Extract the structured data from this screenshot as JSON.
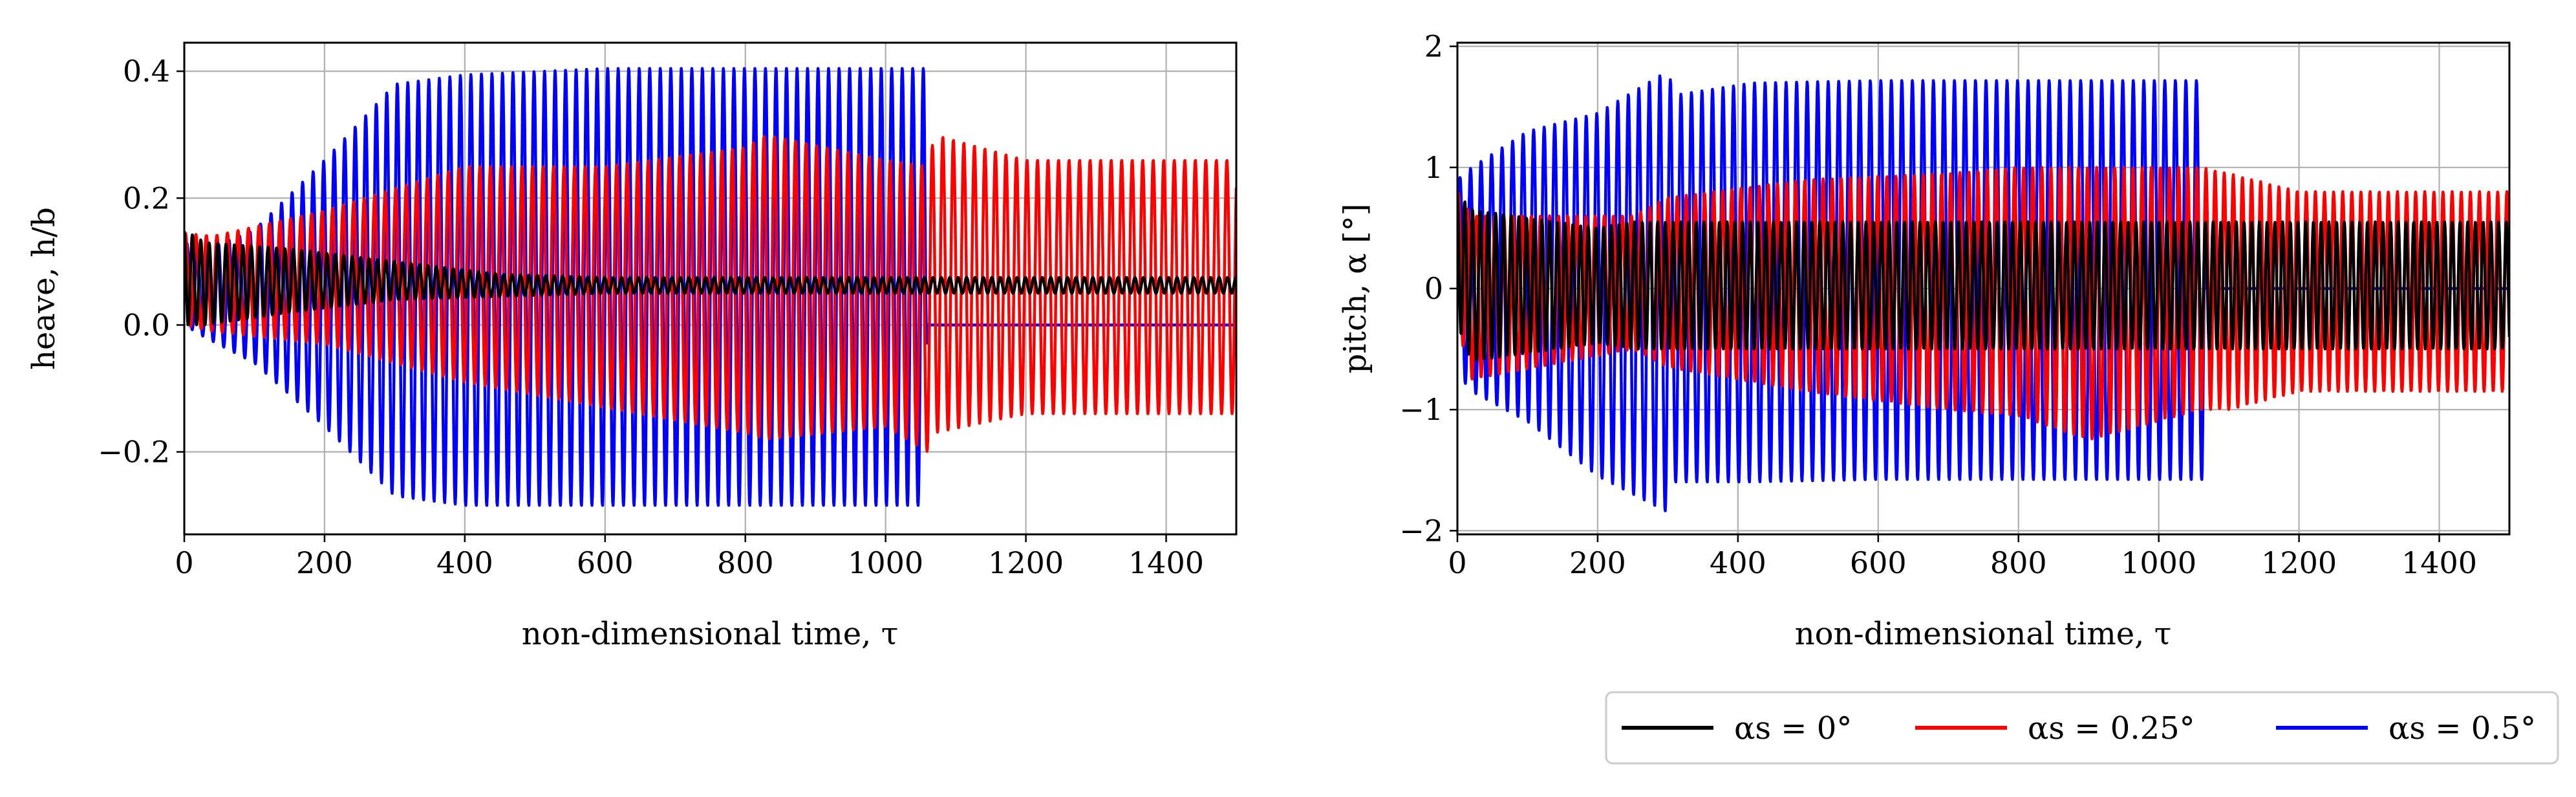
{
  "chart_data": [
    {
      "type": "line",
      "xlabel": "non-dimensional time, τ",
      "ylabel": "heave, h/b",
      "xlim": [
        0,
        1500
      ],
      "ylim": [
        -0.33,
        0.445
      ],
      "xticks": [
        0,
        200,
        400,
        600,
        800,
        1000,
        1200,
        1400
      ],
      "xtick_labels": [
        "0",
        "200",
        "400",
        "600",
        "800",
        "1000",
        "1200",
        "1400"
      ],
      "yticks": [
        -0.2,
        0.0,
        0.2,
        0.4
      ],
      "ytick_labels": [
        "−0.2",
        "0.0",
        "0.2",
        "0.4"
      ],
      "grid": true,
      "series": [
        {
          "name": "α_s = 0.5°",
          "color": "#0000ff",
          "period": 15,
          "envelope_x": [
            0,
            30,
            100,
            200,
            300,
            400,
            600,
            800,
            1000,
            1055,
            1060,
            1500
          ],
          "envelope_upper": [
            0.13,
            0.12,
            0.15,
            0.26,
            0.38,
            0.395,
            0.405,
            0.405,
            0.405,
            0.405,
            0.0,
            0.0
          ],
          "envelope_lower": [
            0.0,
            -0.02,
            -0.06,
            -0.16,
            -0.27,
            -0.285,
            -0.285,
            -0.285,
            -0.285,
            -0.285,
            0.0,
            0.0
          ]
        },
        {
          "name": "α_s = 0.25°",
          "color": "#ff0000",
          "period": 15,
          "envelope_x": [
            0,
            40,
            200,
            400,
            600,
            800,
            830,
            1000,
            1060,
            1070,
            1200,
            1500
          ],
          "envelope_upper": [
            0.145,
            0.14,
            0.18,
            0.25,
            0.25,
            0.28,
            0.3,
            0.26,
            0.25,
            0.3,
            0.26,
            0.26
          ],
          "envelope_lower": [
            0.0,
            -0.01,
            -0.03,
            -0.09,
            -0.13,
            -0.17,
            -0.18,
            -0.16,
            -0.2,
            -0.17,
            -0.14,
            -0.14
          ]
        },
        {
          "name": "α_s = 0°",
          "color": "#000000",
          "period": 12,
          "envelope_x": [
            0,
            30,
            150,
            300,
            450,
            600,
            1500
          ],
          "envelope_upper": [
            0.15,
            0.13,
            0.12,
            0.1,
            0.08,
            0.075,
            0.075
          ],
          "envelope_lower": [
            0.0,
            0.0,
            0.02,
            0.04,
            0.045,
            0.05,
            0.05
          ]
        }
      ]
    },
    {
      "type": "line",
      "xlabel": "non-dimensional time, τ",
      "ylabel": "pitch, α [°]",
      "xlim": [
        0,
        1500
      ],
      "ylim": [
        -2.03,
        2.03
      ],
      "xticks": [
        0,
        200,
        400,
        600,
        800,
        1000,
        1200,
        1400
      ],
      "xtick_labels": [
        "0",
        "200",
        "400",
        "600",
        "800",
        "1000",
        "1200",
        "1400"
      ],
      "yticks": [
        -2,
        -1,
        0,
        1,
        2
      ],
      "ytick_labels": [
        "−2",
        "−1",
        "0",
        "1",
        "2"
      ],
      "grid": true,
      "series": [
        {
          "name": "α_s = 0.5°",
          "color": "#0000ff",
          "period": 15,
          "envelope_x": [
            0,
            20,
            100,
            200,
            300,
            310,
            420,
            600,
            1000,
            1062,
            1068,
            1500
          ],
          "envelope_upper": [
            0.9,
            1.0,
            1.3,
            1.45,
            1.8,
            1.6,
            1.7,
            1.72,
            1.72,
            1.72,
            0.0,
            0.0
          ],
          "envelope_lower": [
            -0.7,
            -0.85,
            -1.1,
            -1.55,
            -1.85,
            -1.6,
            -1.6,
            -1.58,
            -1.58,
            -1.58,
            0.0,
            0.0
          ]
        },
        {
          "name": "α_s = 0.25°",
          "color": "#ff0000",
          "period": 13,
          "envelope_x": [
            0,
            20,
            250,
            300,
            500,
            700,
            800,
            900,
            1060,
            1100,
            1200,
            1500
          ],
          "envelope_upper": [
            0.8,
            0.6,
            0.6,
            0.75,
            0.9,
            0.95,
            1.0,
            1.0,
            1.0,
            0.95,
            0.8,
            0.8
          ],
          "envelope_lower": [
            -0.3,
            -0.75,
            -0.5,
            -0.65,
            -0.85,
            -1.0,
            -1.05,
            -1.25,
            -1.0,
            -1.0,
            -0.85,
            -0.85
          ]
        },
        {
          "name": "α_s = 0°",
          "color": "#000000",
          "period": 11,
          "envelope_x": [
            0,
            20,
            200,
            250,
            300,
            1500
          ],
          "envelope_upper": [
            0.8,
            0.65,
            0.5,
            0.55,
            0.55,
            0.55
          ],
          "envelope_lower": [
            -0.3,
            -0.6,
            -0.45,
            -0.5,
            -0.5,
            -0.5
          ]
        }
      ]
    }
  ],
  "legend": {
    "placement": "bottom-right",
    "entries": [
      {
        "label": "αs = 0°",
        "color": "#000000"
      },
      {
        "label": "αs = 0.25°",
        "color": "#ff0000"
      },
      {
        "label": "αs = 0.5°",
        "color": "#0000ff"
      }
    ]
  }
}
